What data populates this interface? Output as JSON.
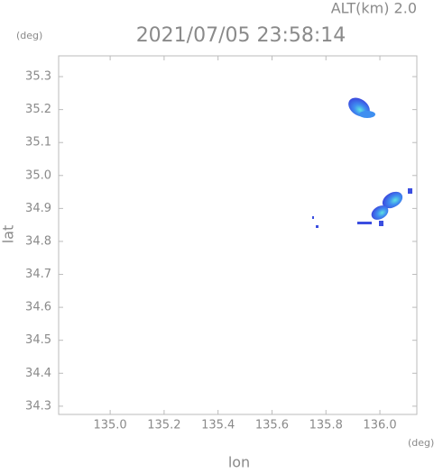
{
  "chart_data": {
    "type": "map",
    "title": "2021/07/05 23:58:14",
    "altitude_label": "ALT(km) 2.0",
    "y_unit": "(deg)",
    "x_unit": "(deg)",
    "xlabel": "lon",
    "ylabel": "lat",
    "xlim": [
      134.809,
      136.137
    ],
    "ylim": [
      34.275,
      35.363
    ],
    "xticks": [
      {
        "value": 135,
        "label": "135.0"
      },
      135.2,
      135.4,
      135.6,
      135.8,
      {
        "value": 136,
        "label": "136.0"
      }
    ],
    "yticks": [
      34.3,
      34.4,
      34.5,
      34.6,
      34.7,
      34.8,
      34.9,
      {
        "value": 35,
        "label": "35.0"
      },
      35.1,
      35.2,
      35.3
    ],
    "grid": false
  }
}
